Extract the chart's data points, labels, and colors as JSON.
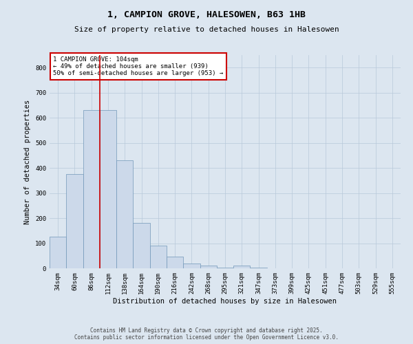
{
  "title_line1": "1, CAMPION GROVE, HALESOWEN, B63 1HB",
  "title_line2": "Size of property relative to detached houses in Halesowen",
  "xlabel": "Distribution of detached houses by size in Halesowen",
  "ylabel": "Number of detached properties",
  "bar_values": [
    125,
    375,
    630,
    630,
    430,
    180,
    90,
    47,
    20,
    10,
    2,
    10,
    2,
    0,
    0,
    0,
    0,
    0,
    0,
    0,
    0
  ],
  "categories": [
    "34sqm",
    "60sqm",
    "86sqm",
    "112sqm",
    "138sqm",
    "164sqm",
    "190sqm",
    "216sqm",
    "242sqm",
    "268sqm",
    "295sqm",
    "321sqm",
    "347sqm",
    "373sqm",
    "399sqm",
    "425sqm",
    "451sqm",
    "477sqm",
    "503sqm",
    "529sqm",
    "555sqm"
  ],
  "bar_color": "#ccd9ea",
  "bar_edge_color": "#7096b8",
  "grid_color": "#b8c8da",
  "background_color": "#dce6f0",
  "vline_x": 3.0,
  "vline_color": "#cc0000",
  "annotation_text": "1 CAMPION GROVE: 104sqm\n← 49% of detached houses are smaller (939)\n50% of semi-detached houses are larger (953) →",
  "annotation_box_color": "#ffffff",
  "annotation_box_edge": "#cc0000",
  "ylim": [
    0,
    850
  ],
  "yticks": [
    0,
    100,
    200,
    300,
    400,
    500,
    600,
    700,
    800
  ],
  "footer_text": "Contains HM Land Registry data © Crown copyright and database right 2025.\nContains public sector information licensed under the Open Government Licence v3.0.",
  "title_fontsize": 9.5,
  "subtitle_fontsize": 8,
  "axis_label_fontsize": 7.5,
  "tick_fontsize": 6.5,
  "annotation_fontsize": 6.5,
  "footer_fontsize": 5.5
}
